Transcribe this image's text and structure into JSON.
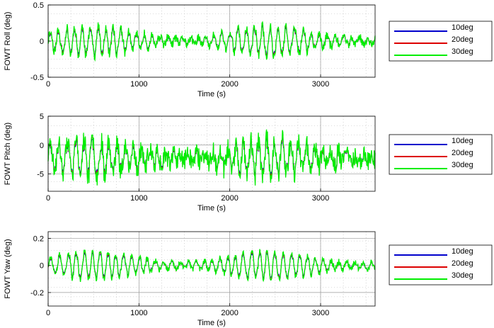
{
  "chart_data": [
    {
      "type": "line",
      "xlabel": "Time (s)",
      "ylabel": "FOWT Roll (deg)",
      "xlim": [
        0,
        3600
      ],
      "ylim": [
        -0.5,
        0.5
      ],
      "xticks": [
        "0",
        "1000",
        "2000",
        "3000"
      ],
      "yticks": [
        "-0.5",
        "0",
        "0.5"
      ],
      "grid": true,
      "legend_position": "right",
      "series": [
        {
          "name": "10deg",
          "color": "#0000cc"
        },
        {
          "name": "20deg",
          "color": "#dd0000"
        },
        {
          "name": "30deg",
          "color": "#00ee00"
        }
      ]
    },
    {
      "type": "line",
      "xlabel": "Time (s)",
      "ylabel": "FOWT Pitch (deg)",
      "xlim": [
        0,
        3600
      ],
      "ylim": [
        -8,
        5
      ],
      "xticks": [
        "0",
        "1000",
        "2000",
        "3000"
      ],
      "yticks": [
        "-5",
        "0",
        "5"
      ],
      "grid": true,
      "legend_position": "right",
      "series": [
        {
          "name": "10deg",
          "color": "#0000cc"
        },
        {
          "name": "20deg",
          "color": "#dd0000"
        },
        {
          "name": "30deg",
          "color": "#00ee00"
        }
      ]
    },
    {
      "type": "line",
      "xlabel": "Time (s)",
      "ylabel": "FOWT Yaw (deg)",
      "xlim": [
        0,
        3600
      ],
      "ylim": [
        -0.3,
        0.25
      ],
      "xticks": [
        "0",
        "1000",
        "2000",
        "3000"
      ],
      "yticks": [
        "-0.2",
        "0",
        "0.2"
      ],
      "grid": true,
      "legend_position": "right",
      "series": [
        {
          "name": "10deg",
          "color": "#0000cc"
        },
        {
          "name": "20deg",
          "color": "#dd0000"
        },
        {
          "name": "30deg",
          "color": "#00ee00"
        }
      ]
    }
  ]
}
